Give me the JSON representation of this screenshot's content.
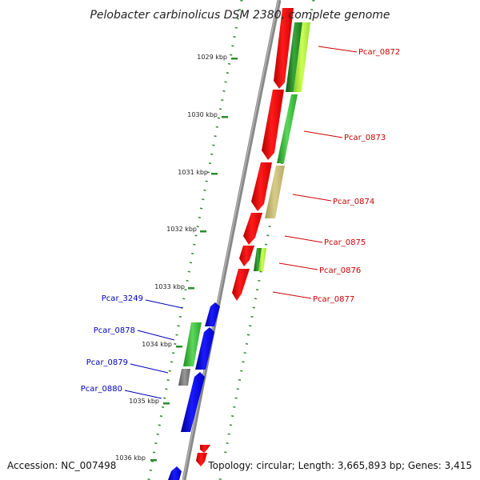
{
  "title": "Pelobacter carbinolicus DSM 2380, complete genome",
  "accession": "Accession: NC_007498",
  "topology": "Topology: circular; Length: 3,665,893 bp; Genes: 3,415",
  "colors": {
    "forward_gene": "#ff0000",
    "reverse_gene": "#0000ff",
    "backbone": "#888888",
    "dots": "#2d8a2d",
    "label_red": "#cc0000",
    "label_blue": "#0000bb"
  },
  "kbp_ticks": [
    "1029 kbp",
    "1030 kbp",
    "1031 kbp",
    "1032 kbp",
    "1033 kbp",
    "1034 kbp",
    "1035 kbp",
    "1036 kbp"
  ],
  "gene_labels_right": [
    "Pcar_0872",
    "Pcar_0873",
    "Pcar_0874",
    "Pcar_0875",
    "Pcar_0876",
    "Pcar_0877"
  ],
  "gene_labels_left": [
    "Pcar_3249",
    "Pcar_0878",
    "Pcar_0879",
    "Pcar_0880"
  ]
}
